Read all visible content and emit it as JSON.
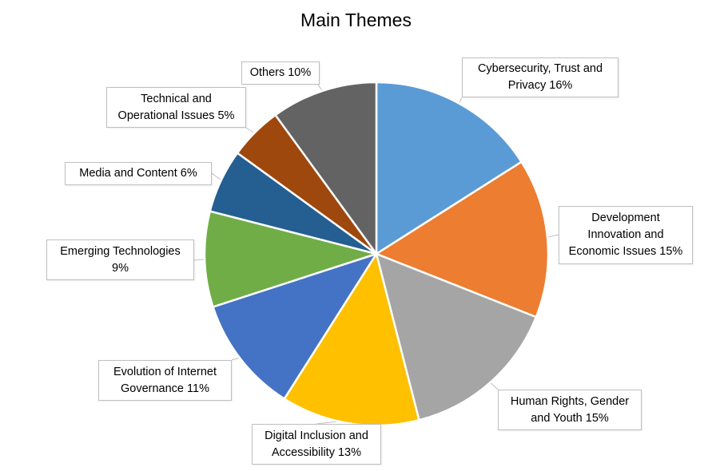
{
  "chart_data": {
    "type": "pie",
    "title": "Main Themes",
    "slices": [
      {
        "label": "Cybersecurity, Trust and\nPrivacy 16%",
        "value": 16,
        "color": "#5b9bd5"
      },
      {
        "label": "Development\nInnovation and\nEconomic Issues 15%",
        "value": 15,
        "color": "#ed7d31"
      },
      {
        "label": "Human Rights, Gender\nand Youth 15%",
        "value": 15,
        "color": "#a5a5a5"
      },
      {
        "label": "Digital Inclusion and\nAccessibility 13%",
        "value": 13,
        "color": "#ffc000"
      },
      {
        "label": "Evolution of Internet\nGovernance 11%",
        "value": 11,
        "color": "#4472c4"
      },
      {
        "label": "Emerging Technologies\n9%",
        "value": 9,
        "color": "#70ad47"
      },
      {
        "label": "Media and Content 6%",
        "value": 6,
        "color": "#255e91"
      },
      {
        "label": "Technical and\nOperational Issues 5%",
        "value": 5,
        "color": "#9e480e"
      },
      {
        "label": "Others 10%",
        "value": 10,
        "color": "#636363"
      }
    ],
    "legend": "none",
    "data_labels": "callout"
  }
}
